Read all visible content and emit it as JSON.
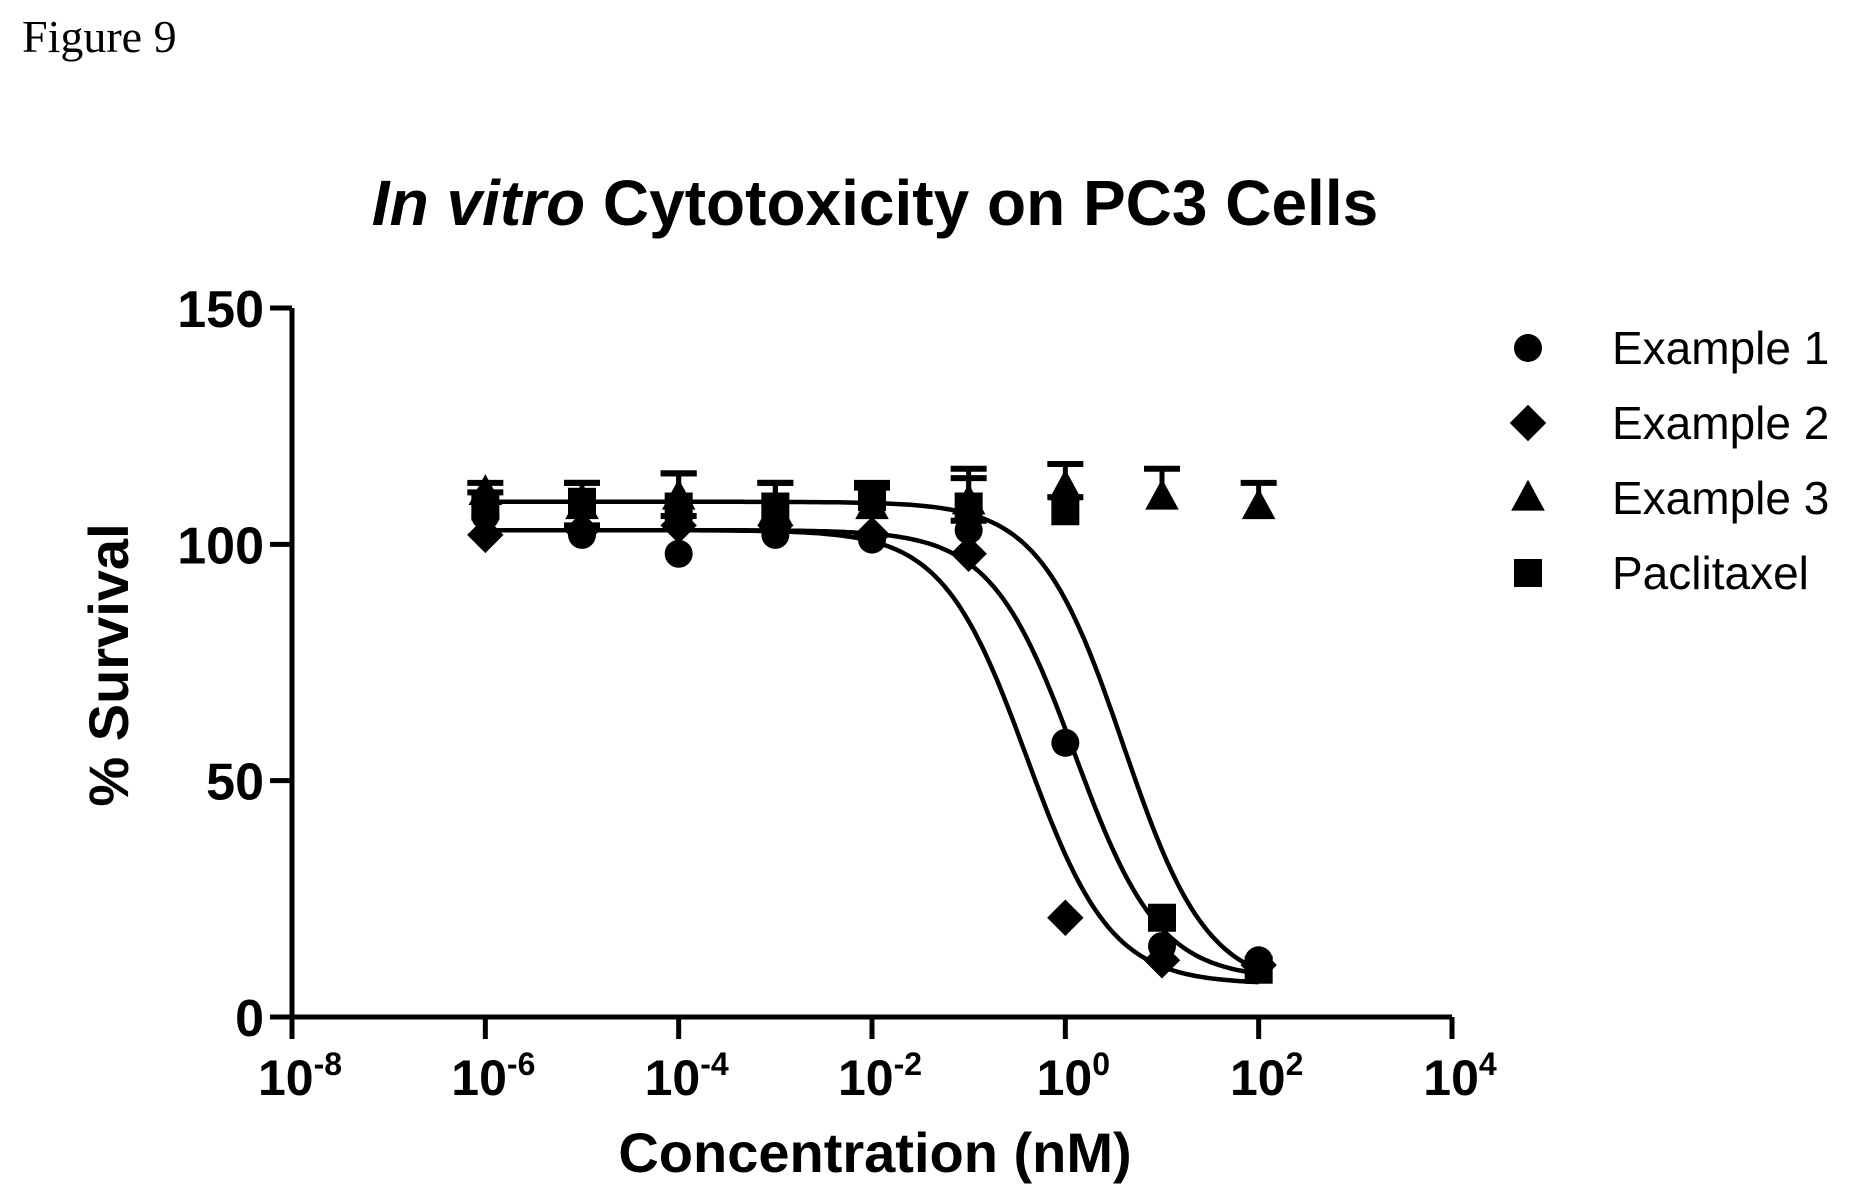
{
  "figure_label": "Figure 9",
  "chart_data": {
    "type": "scatter",
    "title_italic": "In vitro",
    "title_rest": " Cytotoxicity on PC3 Cells",
    "xlabel": "Concentration (nM)",
    "ylabel": "% Survival",
    "x_scale": "log",
    "xlim": [
      1e-08,
      10000.0
    ],
    "ylim": [
      0,
      150
    ],
    "x_ticks": [
      {
        "value": 1e-08,
        "base": "10",
        "exp": "-8"
      },
      {
        "value": 1e-06,
        "base": "10",
        "exp": "-6"
      },
      {
        "value": 0.0001,
        "base": "10",
        "exp": "-4"
      },
      {
        "value": 0.01,
        "base": "10",
        "exp": "-2"
      },
      {
        "value": 1,
        "base": "10",
        "exp": "0"
      },
      {
        "value": 100,
        "base": "10",
        "exp": "2"
      },
      {
        "value": 10000,
        "base": "10",
        "exp": "4"
      }
    ],
    "y_ticks": [
      {
        "value": 0,
        "label": "0"
      },
      {
        "value": 50,
        "label": "50"
      },
      {
        "value": 100,
        "label": "100"
      },
      {
        "value": 150,
        "label": "150"
      }
    ],
    "grid": false,
    "legend_position": "right",
    "series": [
      {
        "name": "Example 1",
        "marker": "circle",
        "x": [
          1e-06,
          1e-05,
          0.0001,
          0.001,
          0.01,
          0.1,
          1,
          10,
          100
        ],
        "y": [
          106,
          102,
          98,
          102,
          101,
          103,
          58,
          15,
          12
        ],
        "error": [
          0,
          2,
          0,
          0,
          0,
          2,
          0,
          0,
          0
        ],
        "fit": {
          "top": 103,
          "bottom": 7,
          "log_ec50": -0.4,
          "hill": 1
        }
      },
      {
        "name": "Example 2",
        "marker": "diamond",
        "x": [
          1e-06,
          1e-05,
          0.0001,
          0.001,
          0.01,
          0.1,
          1,
          10,
          100
        ],
        "y": [
          102,
          103,
          104,
          104,
          102,
          98,
          21,
          12,
          11
        ],
        "error": [
          0,
          0,
          2,
          0,
          0,
          0,
          0,
          0,
          0
        ],
        "fit": {
          "top": 103,
          "bottom": 8,
          "log_ec50": 0.1,
          "hill": 1
        }
      },
      {
        "name": "Example 3",
        "marker": "triangle",
        "x": [
          1e-06,
          1e-05,
          0.0001,
          0.001,
          0.01,
          0.1,
          1,
          10,
          100
        ],
        "y": [
          111,
          108,
          110,
          107,
          108,
          109,
          112,
          110,
          108
        ],
        "error": [
          2,
          5,
          5,
          6,
          4,
          7,
          5,
          6,
          5
        ]
      },
      {
        "name": "Paclitaxel",
        "marker": "square",
        "x": [
          1e-06,
          1e-05,
          0.0001,
          0.001,
          0.01,
          0.1,
          1,
          10,
          100
        ],
        "y": [
          108,
          109,
          108,
          108,
          110,
          108,
          107,
          21,
          10
        ],
        "error": [
          3,
          4,
          7,
          5,
          3,
          6,
          3,
          0,
          0
        ],
        "fit": {
          "top": 109,
          "bottom": 6,
          "log_ec50": 0.6,
          "hill": 1
        }
      }
    ]
  }
}
